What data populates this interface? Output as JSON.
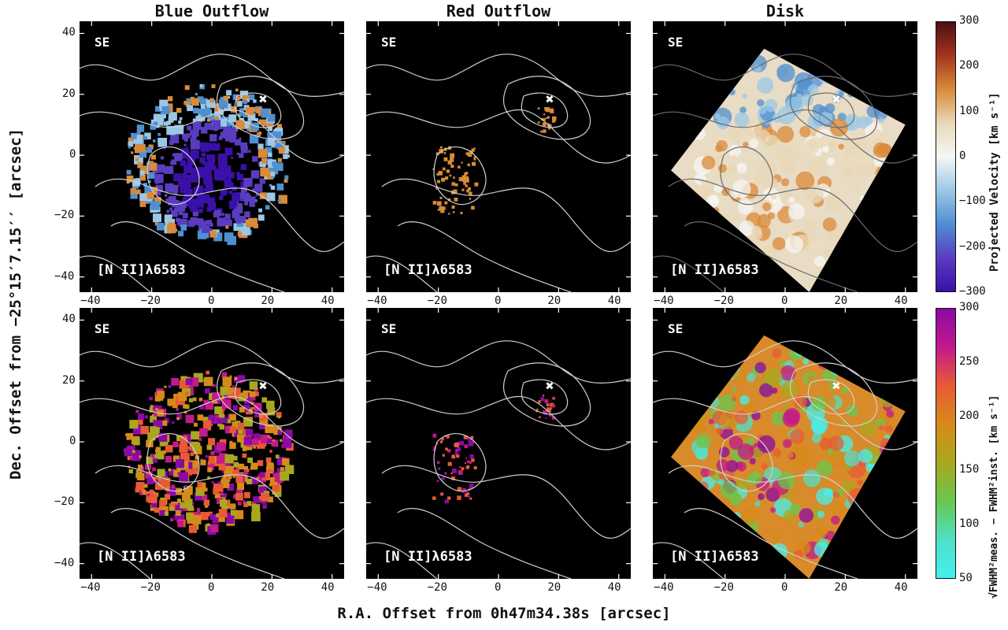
{
  "figure": {
    "column_titles": [
      "Blue Outflow",
      "Red Outflow",
      "Disk"
    ],
    "corner_label": "SE",
    "line_label": "[N II]λ6583",
    "ylabel": "Dec. Offset from −25°15′7.15′′ [arcsec]",
    "xlabel": "R.A. Offset from 0h47m34.38s [arcsec]",
    "x_ticks": [
      "−40",
      "−20",
      "0",
      "20",
      "40"
    ],
    "y_ticks": [
      "40",
      "20",
      "0",
      "−20",
      "−40"
    ],
    "nucleus_marker": "✖"
  },
  "colorbars": {
    "velocity": {
      "label": "Projected Velocity [km s⁻¹]",
      "ticks": [
        "300",
        "200",
        "100",
        "0",
        "−100",
        "−200",
        "−300"
      ],
      "colors": [
        "#4b0f13",
        "#a5341f",
        "#d98a3a",
        "#e8d8b8",
        "#f6f6f6",
        "#9cc8e6",
        "#4f8fd2",
        "#5a3cc0",
        "#3a10a8"
      ]
    },
    "fwhm": {
      "label": "√FWHM²meas. − FWHM²inst. [km s⁻¹]",
      "ticks": [
        "300",
        "250",
        "200",
        "150",
        "100",
        "50"
      ],
      "colors": [
        "#8a0aa6",
        "#c21a8a",
        "#e85a35",
        "#d78a1a",
        "#a8a81f",
        "#68c74e",
        "#4fe0c8",
        "#44f0ee"
      ]
    }
  },
  "colors": {
    "panel_bg": "#000000",
    "contour": "#cfcfcf",
    "disk_contour": "#6b6b6b"
  }
}
